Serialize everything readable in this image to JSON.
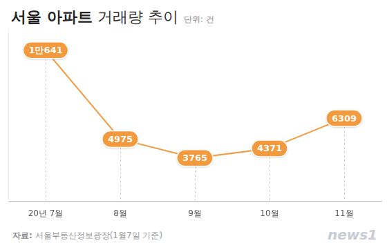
{
  "chart_data": {
    "type": "line",
    "title": "서울 아파트 거래량 추이",
    "subtitle": "단위: 건",
    "annotations": [
      "자료: 서울부동산정보광장(1월7일 기준)",
      "news1"
    ],
    "categories": [
      "20년 7월",
      "8월",
      "9월",
      "10월",
      "11월"
    ],
    "values": [
      10641,
      4975,
      3765,
      4371,
      6309
    ],
    "value_labels": [
      "1만641",
      "4975",
      "3765",
      "4371",
      "6309"
    ],
    "color": "#f39a3e",
    "ylim": [
      1000,
      12000
    ],
    "grid": true,
    "data_labels": true,
    "tick_labels": "x"
  }
}
